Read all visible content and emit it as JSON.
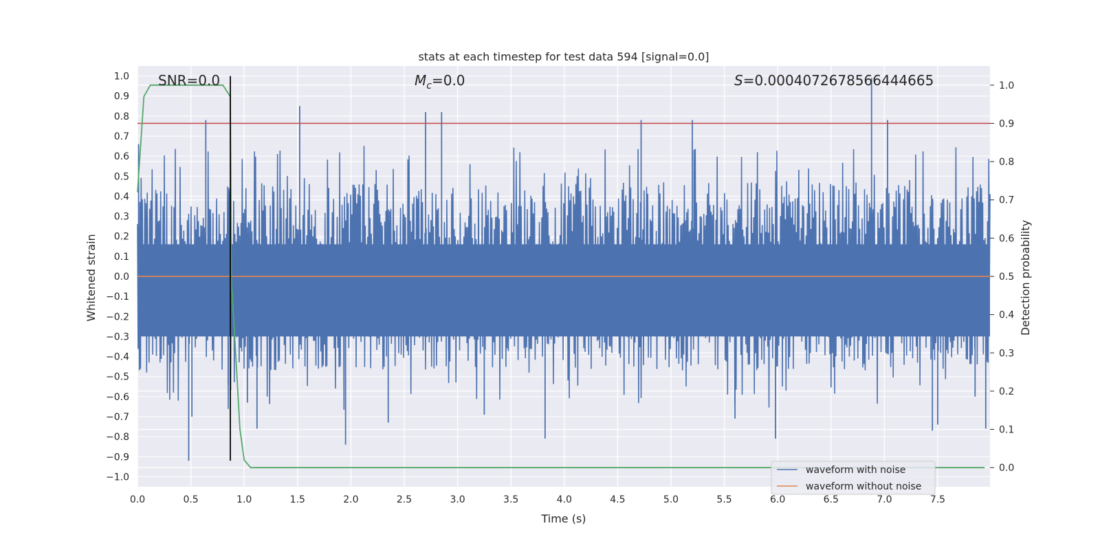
{
  "chart_data": {
    "type": "line",
    "title": "stats at each timestep for test data 594 [signal=0.0]",
    "xlabel": "Time (s)",
    "ylabel": "Whitened strain",
    "ylabel_right": "Detection probability",
    "xlim": [
      0.0,
      7.99
    ],
    "ylim": [
      -1.05,
      1.05
    ],
    "ylim_right": [
      -0.05,
      1.05
    ],
    "xticks": [
      "0.0",
      "0.5",
      "1.0",
      "1.5",
      "2.0",
      "2.5",
      "3.0",
      "3.5",
      "4.0",
      "4.5",
      "5.0",
      "5.5",
      "6.0",
      "6.5",
      "7.0",
      "7.5"
    ],
    "yticks": [
      "1.0",
      "0.9",
      "0.8",
      "0.7",
      "0.6",
      "0.5",
      "0.4",
      "0.3",
      "0.2",
      "0.1",
      "0.0",
      "−0.1",
      "−0.2",
      "−0.3",
      "−0.4",
      "−0.5",
      "−0.6",
      "−0.7",
      "−0.8",
      "−0.9",
      "−1.0"
    ],
    "yticks_right": [
      "1.0",
      "0.9",
      "0.8",
      "0.7",
      "0.6",
      "0.5",
      "0.4",
      "0.3",
      "0.2",
      "0.1",
      "0.0"
    ],
    "grid": true,
    "annotations": {
      "snr": "SNR=0.0",
      "mc_symbol": "M",
      "mc_sub": "c",
      "mc_value": "=0.0",
      "s_symbol": "S",
      "s_value": "=0.0004072678566444665"
    },
    "colors": {
      "background": "#eaeaf2",
      "grid": "#ffffff",
      "noisy": "#4c72b0",
      "clean": "#dd8452",
      "probability": "#55a868",
      "threshold": "#c44e52",
      "marker": "#000000"
    },
    "series": [
      {
        "name": "waveform with noise",
        "color": "#4c72b0",
        "envelope_typical": 0.42,
        "peaks": [
          {
            "x": 0.01,
            "y": 0.66
          },
          {
            "x": 0.48,
            "y": -0.92
          },
          {
            "x": 0.51,
            "y": -0.7
          },
          {
            "x": 0.64,
            "y": 0.78
          },
          {
            "x": 0.85,
            "y": -0.54
          },
          {
            "x": 1.03,
            "y": -0.63
          },
          {
            "x": 1.12,
            "y": -0.76
          },
          {
            "x": 1.52,
            "y": 0.85
          },
          {
            "x": 1.95,
            "y": -0.84
          },
          {
            "x": 2.35,
            "y": -0.73
          },
          {
            "x": 2.7,
            "y": 0.82
          },
          {
            "x": 2.85,
            "y": 0.82
          },
          {
            "x": 3.25,
            "y": -0.69
          },
          {
            "x": 3.82,
            "y": -0.81
          },
          {
            "x": 4.13,
            "y": -0.09
          },
          {
            "x": 4.4,
            "y": -0.15
          },
          {
            "x": 4.72,
            "y": 0.78
          },
          {
            "x": 5.2,
            "y": 0.78
          },
          {
            "x": 5.6,
            "y": -0.71
          },
          {
            "x": 5.98,
            "y": -0.81
          },
          {
            "x": 6.88,
            "y": 0.99
          },
          {
            "x": 7.03,
            "y": 0.78
          },
          {
            "x": 7.45,
            "y": -0.77
          },
          {
            "x": 7.5,
            "y": -0.74
          },
          {
            "x": 7.85,
            "y": -0.6
          },
          {
            "x": 7.95,
            "y": -0.76
          }
        ]
      },
      {
        "name": "waveform without noise",
        "color": "#dd8452",
        "x": [
          0.0,
          7.99
        ],
        "y": [
          0.0,
          0.0
        ]
      },
      {
        "axis": "right",
        "color": "#55a868",
        "x": [
          0.0,
          0.06,
          0.12,
          0.2,
          0.5,
          0.8,
          0.87,
          0.88,
          0.93,
          0.96,
          1.0,
          1.06,
          7.94
        ],
        "y": [
          0.72,
          0.97,
          1.0,
          1.0,
          1.0,
          1.0,
          0.97,
          0.49,
          0.25,
          0.1,
          0.02,
          0.0,
          0.0
        ]
      }
    ],
    "threshold_line": {
      "axis": "right",
      "y": 0.9
    },
    "marker_line": {
      "x": 0.87,
      "y0": -0.92,
      "y1": 1.0
    }
  }
}
